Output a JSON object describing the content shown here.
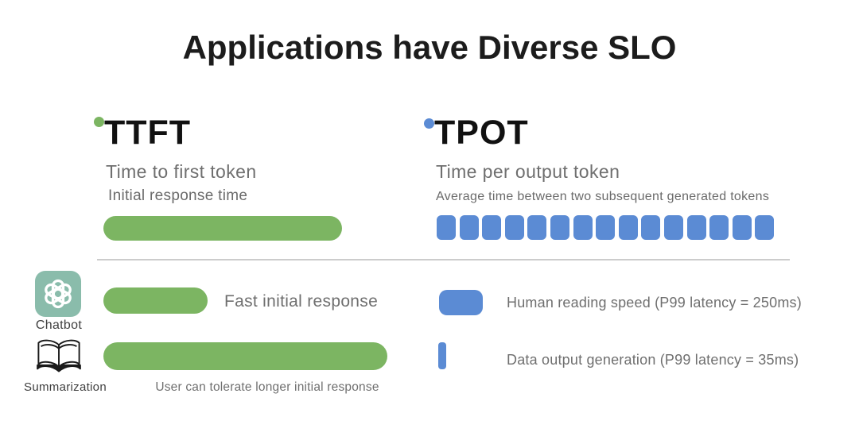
{
  "title": "Applications have Diverse SLO",
  "colors": {
    "green_accent": "#7cb562",
    "blue_accent": "#5b8bd4",
    "chatbot_icon_bg": "#8abcab",
    "heading_text": "#1c1c1c",
    "gray_text": "#6f6f6f",
    "divider": "#cccccc"
  },
  "metrics": {
    "ttft": {
      "abbr": "TTFT",
      "name": "Time to first token",
      "description": "Initial response time"
    },
    "tpot": {
      "abbr": "TPOT",
      "name": "Time per output token",
      "description": "Average time between two subsequent generated tokens",
      "token_count": 15
    }
  },
  "applications": [
    {
      "name": "Chatbot",
      "icon": "chatgpt-logo-icon",
      "ttft_note": "Fast initial response",
      "tpot_note": "Human reading speed (P99 latency = 250ms)"
    },
    {
      "name": "Summarization",
      "icon": "open-book-icon",
      "ttft_note": "User can tolerate longer initial response",
      "tpot_note": "Data output generation (P99 latency = 35ms)"
    }
  ]
}
